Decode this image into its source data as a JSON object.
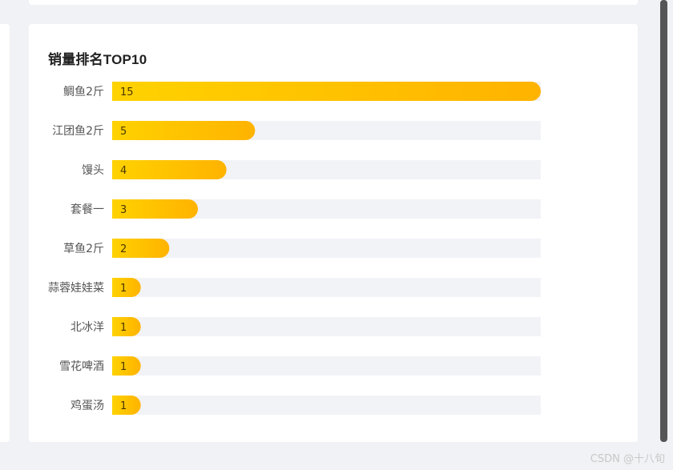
{
  "card": {
    "title": "销量排名TOP10"
  },
  "watermark": "CSDN @十八旬",
  "colors": {
    "bar_start": "#ffd200",
    "bar_end": "#ffb300",
    "track": "#f2f3f7",
    "value_text": "#4a3600"
  },
  "chart_data": {
    "type": "bar",
    "orientation": "horizontal",
    "title": "销量排名TOP10",
    "categories": [
      "鲷鱼2斤",
      "江团鱼2斤",
      "馒头",
      "套餐一",
      "草鱼2斤",
      "蒜蓉娃娃菜",
      "北冰洋",
      "雪花啤酒",
      "鸡蛋汤"
    ],
    "values": [
      15,
      5,
      4,
      3,
      2,
      1,
      1,
      1,
      1
    ],
    "xlim": [
      0,
      15
    ],
    "grid": false,
    "legend": "none"
  }
}
